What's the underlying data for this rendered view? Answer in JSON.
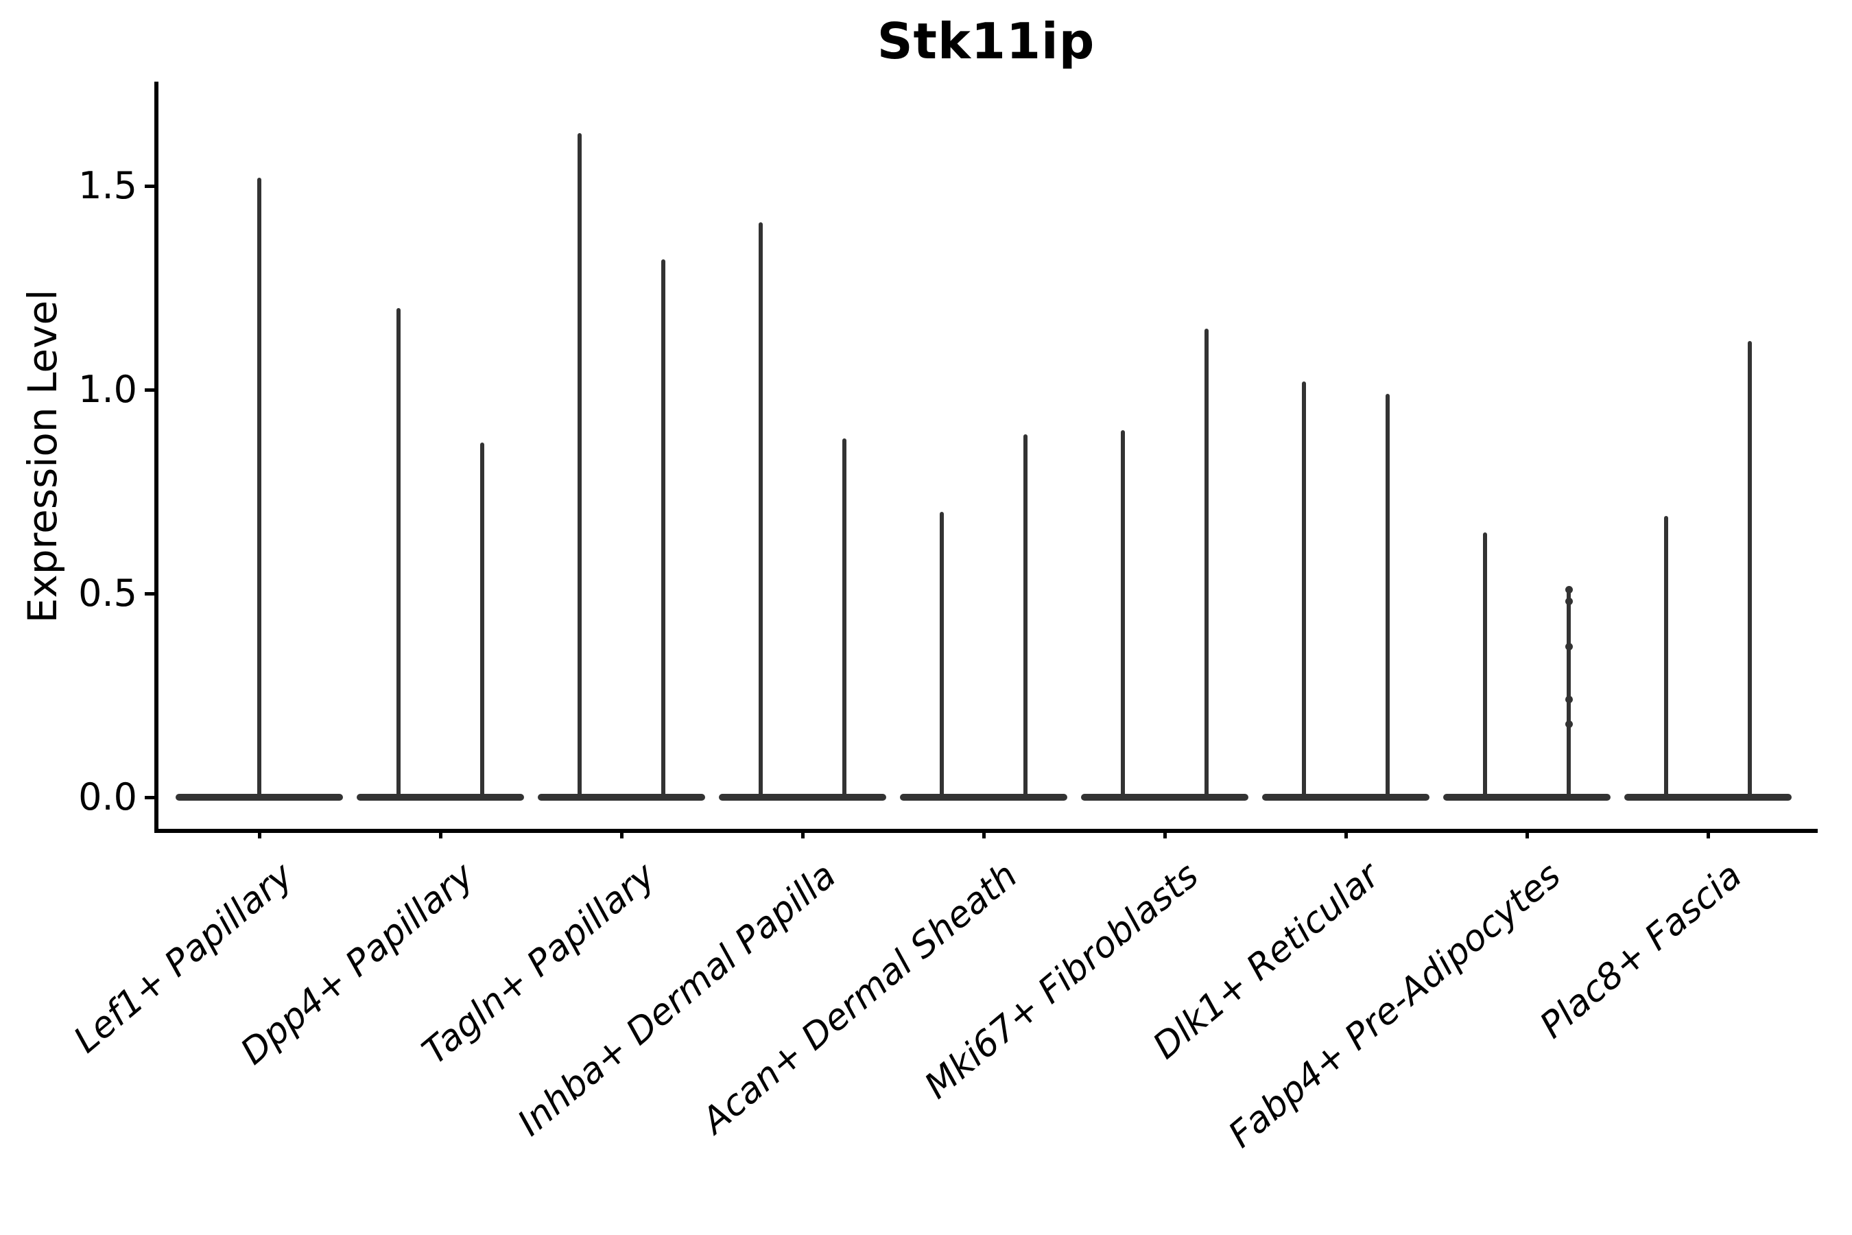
{
  "title": "Stk11ip",
  "ylabel": "Expression Level",
  "chart_data": {
    "type": "violin",
    "title": "Stk11ip",
    "xlabel": "",
    "ylabel": "Expression Level",
    "ytick_labels": [
      "0.0",
      "0.5",
      "1.0",
      "1.5"
    ],
    "yticks": [
      0.0,
      0.5,
      1.0,
      1.5
    ],
    "ylim": [
      0.0,
      1.76
    ],
    "grid": false,
    "legend": false,
    "violin_color": "#333333",
    "note": "Each category shows violin(s) collapsed at 0 with a thin spike to the max expression value; first category has a single centered violin, all others have a left and right violin pair.",
    "categories": [
      "Lef1+ Papillary",
      "Dpp4+ Papillary",
      "Tagln+ Papillary",
      "Inhba+ Dermal Papilla",
      "Acan+ Dermal Sheath",
      "Mki67+ Fibroblasts",
      "Dlk1+ Reticular",
      "Fabp4+ Pre-Adipocytes",
      "Plac8+ Fascia"
    ],
    "groups": [
      {
        "category": "Lef1+ Papillary",
        "violin_max": [
          1.52
        ]
      },
      {
        "category": "Dpp4+ Papillary",
        "violin_max": [
          1.2,
          0.87
        ]
      },
      {
        "category": "Tagln+ Papillary",
        "violin_max": [
          1.63,
          1.32
        ]
      },
      {
        "category": "Inhba+ Dermal Papilla",
        "violin_max": [
          1.41,
          0.88
        ]
      },
      {
        "category": "Acan+ Dermal Sheath",
        "violin_max": [
          0.7,
          0.89
        ]
      },
      {
        "category": "Mki67+ Fibroblasts",
        "violin_max": [
          0.9,
          1.15
        ]
      },
      {
        "category": "Dlk1+ Reticular",
        "violin_max": [
          1.02,
          0.99
        ]
      },
      {
        "category": "Fabp4+ Pre-Adipocytes",
        "violin_max": [
          0.65,
          0.51
        ]
      },
      {
        "category": "Plac8+ Fascia",
        "violin_max": [
          0.69,
          1.12
        ]
      }
    ],
    "jitter_points": [
      {
        "category": "Fabp4+ Pre-Adipocytes",
        "violin_index": 1,
        "values": [
          0.51,
          0.48,
          0.37,
          0.24,
          0.18
        ]
      }
    ]
  }
}
